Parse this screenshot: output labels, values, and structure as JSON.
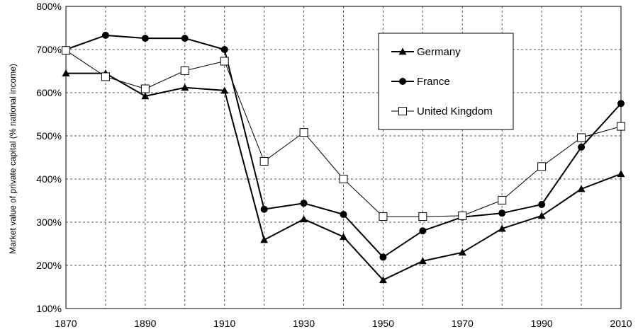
{
  "chart_data": {
    "type": "line",
    "title": "",
    "xlabel": "",
    "ylabel": "Market value of private capital (% national income)",
    "x": [
      1870,
      1880,
      1890,
      1900,
      1910,
      1920,
      1930,
      1940,
      1950,
      1960,
      1970,
      1980,
      1990,
      2000,
      2010
    ],
    "x_ticks": [
      "1870",
      "1890",
      "1910",
      "1930",
      "1950",
      "1970",
      "1990",
      "2010"
    ],
    "y_ticks": [
      "100%",
      "200%",
      "300%",
      "400%",
      "500%",
      "600%",
      "700%",
      "800%"
    ],
    "xlim": [
      1870,
      2010
    ],
    "ylim": [
      100,
      800
    ],
    "grid": true,
    "legend_position": "top-right",
    "series": [
      {
        "name": "Germany",
        "marker": "triangle",
        "color": "#000000",
        "points": [
          [
            1870,
            645
          ],
          [
            1880,
            645
          ],
          [
            1890,
            592
          ],
          [
            1900,
            612
          ],
          [
            1910,
            605
          ],
          [
            1920,
            259
          ],
          [
            1930,
            307
          ],
          [
            1940,
            266
          ],
          [
            1950,
            166
          ],
          [
            1960,
            210
          ],
          [
            1970,
            230
          ],
          [
            1980,
            285
          ],
          [
            1990,
            315
          ],
          [
            2000,
            377
          ],
          [
            2010,
            412
          ]
        ]
      },
      {
        "name": "France",
        "marker": "circle",
        "color": "#000000",
        "points": [
          [
            1870,
            700
          ],
          [
            1880,
            733
          ],
          [
            1890,
            726
          ],
          [
            1900,
            726
          ],
          [
            1910,
            700
          ],
          [
            1920,
            330
          ],
          [
            1930,
            344
          ],
          [
            1940,
            318
          ],
          [
            1950,
            219
          ],
          [
            1960,
            280
          ],
          [
            1970,
            312
          ],
          [
            1980,
            321
          ],
          [
            1990,
            341
          ],
          [
            2000,
            474
          ],
          [
            2010,
            575
          ]
        ]
      },
      {
        "name": "United Kingdom",
        "marker": "square-open",
        "color": "#000000",
        "points": [
          [
            1870,
            698
          ],
          [
            1880,
            637
          ],
          [
            1890,
            609
          ],
          [
            1900,
            651
          ],
          [
            1910,
            673
          ],
          [
            1920,
            441
          ],
          [
            1930,
            508
          ],
          [
            1940,
            400
          ],
          [
            1950,
            313
          ],
          [
            1960,
            313
          ],
          [
            1970,
            315
          ],
          [
            1980,
            351
          ],
          [
            1990,
            429
          ],
          [
            2000,
            496
          ],
          [
            2010,
            522
          ]
        ]
      }
    ]
  }
}
